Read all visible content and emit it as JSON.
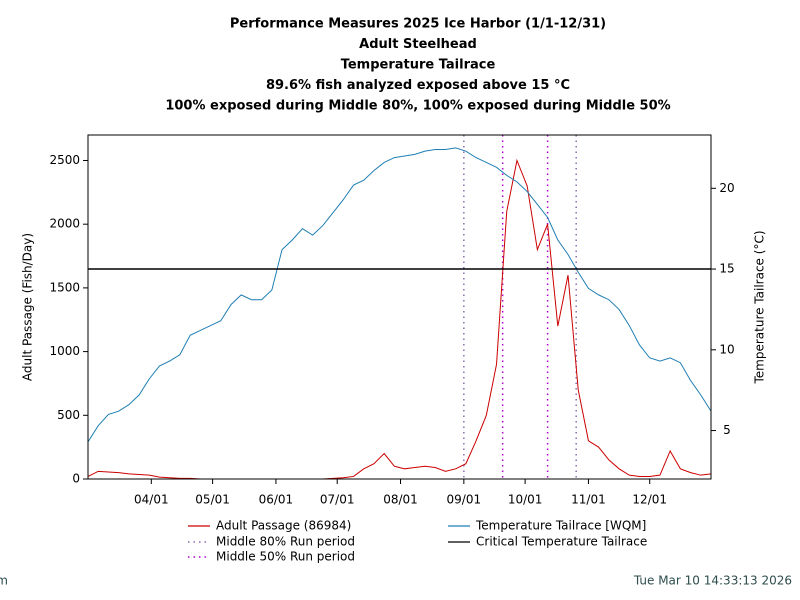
{
  "chart_data": {
    "type": "line",
    "title": [
      "Performance Measures 2025 Ice Harbor (1/1-12/31)",
      "Adult Steelhead",
      "Temperature Tailrace",
      "89.6% fish analyzed exposed above 15 °C",
      "100% exposed during Middle 80%, 100% exposed during Middle 50%"
    ],
    "ylabel": "Adult Passage (Fish/Day)",
    "y2label": "Temperature Tailrace (°C)",
    "xlim": [
      "03/01",
      "12/31"
    ],
    "xticks": [
      "04/01",
      "05/01",
      "06/01",
      "07/01",
      "08/01",
      "09/01",
      "10/01",
      "11/01",
      "12/01"
    ],
    "ylim": [
      0,
      2700
    ],
    "yticks": [
      0,
      500,
      1000,
      1500,
      2000,
      2500
    ],
    "y2lim": [
      2,
      23.3
    ],
    "y2ticks": [
      5,
      10,
      15,
      20
    ],
    "x": [
      "03/01",
      "03/06",
      "03/11",
      "03/16",
      "03/21",
      "03/26",
      "03/31",
      "04/05",
      "04/10",
      "04/15",
      "04/20",
      "04/25",
      "04/30",
      "05/05",
      "05/10",
      "05/15",
      "05/20",
      "05/25",
      "05/30",
      "06/04",
      "06/09",
      "06/14",
      "06/19",
      "06/24",
      "06/29",
      "07/04",
      "07/09",
      "07/14",
      "07/19",
      "07/24",
      "07/29",
      "08/03",
      "08/08",
      "08/13",
      "08/18",
      "08/23",
      "08/28",
      "09/02",
      "09/07",
      "09/12",
      "09/17",
      "09/22",
      "09/27",
      "10/02",
      "10/07",
      "10/12",
      "10/17",
      "10/22",
      "10/27",
      "11/01",
      "11/06",
      "11/11",
      "11/16",
      "11/21",
      "11/26",
      "12/01",
      "12/06",
      "12/11",
      "12/16",
      "12/21",
      "12/26",
      "12/31"
    ],
    "series": [
      {
        "name": "Adult Passage (86984)",
        "color": "#cc0000",
        "axis": "y",
        "values": [
          20,
          60,
          55,
          50,
          40,
          35,
          30,
          15,
          10,
          5,
          5,
          0,
          0,
          0,
          0,
          0,
          0,
          0,
          0,
          0,
          0,
          0,
          0,
          0,
          5,
          10,
          20,
          80,
          120,
          200,
          100,
          80,
          90,
          100,
          90,
          60,
          80,
          120,
          300,
          500,
          900,
          2100,
          2500,
          2300,
          1800,
          2000,
          1200,
          1600,
          700,
          300,
          250,
          150,
          80,
          30,
          20,
          20,
          30,
          220,
          80,
          50,
          30,
          40
        ]
      },
      {
        "name": "Temperature Tailrace [WQM]",
        "color": "#1f7fb4",
        "axis": "y2",
        "values": [
          4.3,
          5.3,
          6.0,
          6.2,
          6.6,
          7.2,
          8.2,
          9.0,
          9.3,
          9.7,
          10.9,
          11.2,
          11.5,
          11.8,
          12.8,
          13.4,
          13.1,
          13.1,
          13.7,
          16.2,
          16.8,
          17.5,
          17.1,
          17.7,
          18.5,
          19.3,
          20.2,
          20.5,
          21.1,
          21.6,
          21.9,
          22.0,
          22.1,
          22.3,
          22.4,
          22.4,
          22.5,
          22.3,
          21.9,
          21.6,
          21.3,
          20.8,
          20.4,
          19.8,
          19.0,
          18.2,
          16.8,
          15.9,
          14.8,
          13.8,
          13.4,
          13.1,
          12.5,
          11.5,
          10.3,
          9.5,
          9.3,
          9.5,
          9.2,
          8.1,
          7.2,
          6.2
        ]
      }
    ],
    "run_periods": [
      {
        "name": "Middle 80% Run period",
        "color": "#8c6bb1",
        "x": [
          "09/01",
          "10/26"
        ]
      },
      {
        "name": "Middle 50% Run period",
        "color": "#b000d0",
        "x": [
          "09/20",
          "10/12"
        ]
      }
    ],
    "reference_lines": [
      {
        "name": "Critical Temperature Tailrace",
        "color": "#000000",
        "axis": "y2",
        "value": 15
      }
    ]
  },
  "footer": {
    "left": "www.cbr.washington.edu/perform",
    "right": "Tue Mar 10 14:33:13 2026"
  }
}
